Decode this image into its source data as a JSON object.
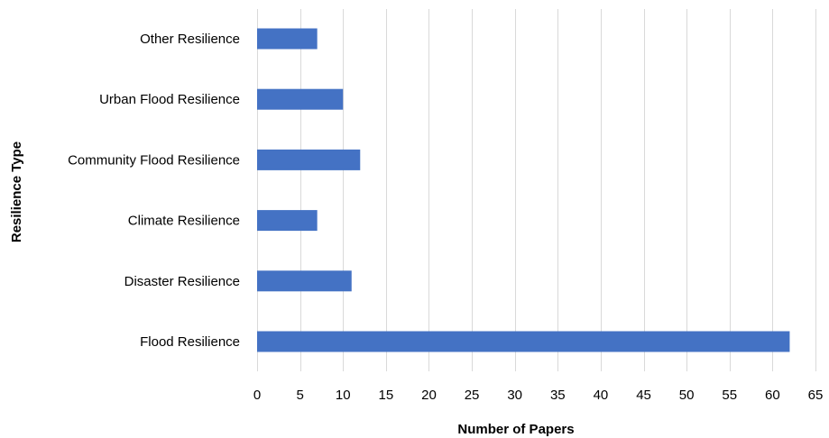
{
  "chart_data": {
    "type": "bar",
    "orientation": "horizontal",
    "title": "",
    "xlabel": "Number of Papers",
    "ylabel": "Resilience Type",
    "categories": [
      "Other Resilience",
      "Urban Flood Resilience",
      "Community Flood Resilience",
      "Climate Resilience",
      "Disaster Resilience",
      "Flood Resilience"
    ],
    "values": [
      7,
      10,
      12,
      7,
      11,
      62
    ],
    "xlim": [
      0,
      65
    ],
    "xticks": [
      0,
      5,
      10,
      15,
      20,
      25,
      30,
      35,
      40,
      45,
      50,
      55,
      60,
      65
    ],
    "grid": "vertical",
    "legend": "none",
    "colors": {
      "bar": "#4472c4",
      "grid": "#d9d9d9"
    }
  }
}
